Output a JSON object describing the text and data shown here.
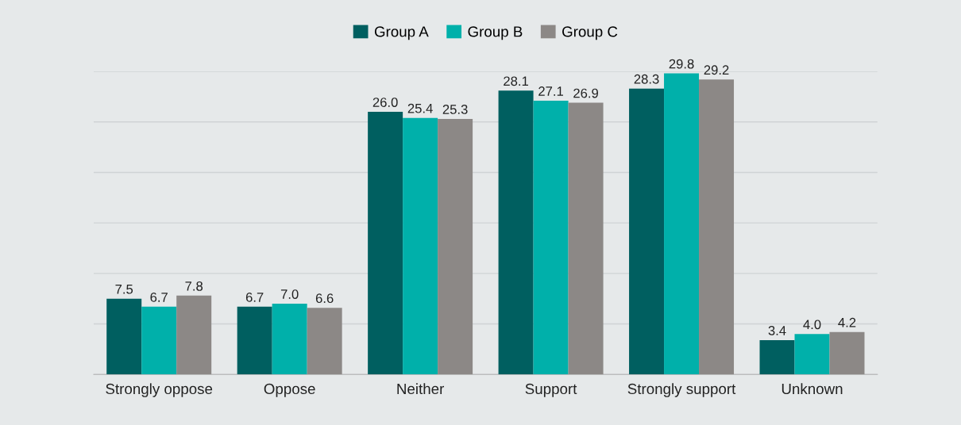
{
  "chart_data": {
    "type": "bar",
    "categories": [
      "Strongly oppose",
      "Oppose",
      "Neither",
      "Support",
      "Strongly support",
      "Unknown"
    ],
    "series": [
      {
        "name": "Group A",
        "color": "#005f60",
        "values": [
          7.5,
          6.7,
          26.0,
          28.1,
          28.3,
          3.4
        ],
        "value_labels": [
          "7.5",
          "6.7",
          "26.0",
          "28.1",
          "28.3",
          "3.4"
        ]
      },
      {
        "name": "Group B",
        "color": "#00b0aa",
        "values": [
          6.7,
          7.0,
          25.4,
          27.1,
          29.8,
          4.0
        ],
        "value_labels": [
          "6.7",
          "7.0",
          "25.4",
          "27.1",
          "29.8",
          "4.0"
        ]
      },
      {
        "name": "Group C",
        "color": "#8c8886",
        "values": [
          7.8,
          6.6,
          25.3,
          26.9,
          29.2,
          4.2
        ],
        "value_labels": [
          "7.8",
          "6.6",
          "25.3",
          "26.9",
          "29.2",
          "4.2"
        ]
      }
    ],
    "ylim": [
      0,
      30
    ],
    "yticks": [
      {
        "value": 0,
        "label": null
      },
      {
        "value": 5,
        "label": null
      },
      {
        "value": 10,
        "label": null
      },
      {
        "value": 15,
        "label": null
      },
      {
        "value": 20,
        "label": null
      },
      {
        "value": 25,
        "label": null
      },
      {
        "value": 30,
        "label": null
      }
    ],
    "tick_labels": "x",
    "grid": "y",
    "legend": "top"
  }
}
